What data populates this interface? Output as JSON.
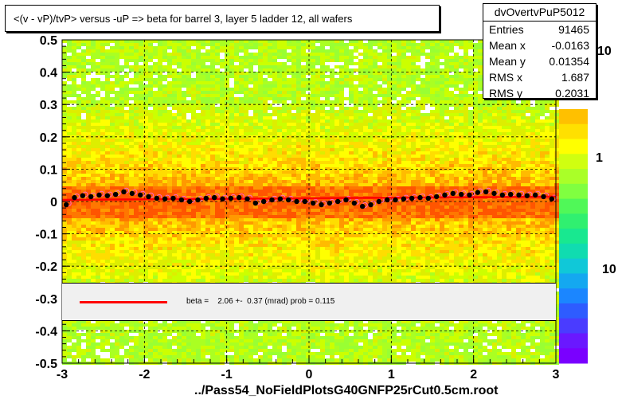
{
  "title": "<(v - vP)/tvP> versus  -uP => beta for barrel 3, layer 5 ladder 12, all wafers",
  "stats": {
    "name": "dvOvertvPuP5012",
    "rows": [
      {
        "label": "Entries",
        "value": "91465"
      },
      {
        "label": "Mean x",
        "value": "-0.0163"
      },
      {
        "label": "Mean y",
        "value": "0.01354"
      },
      {
        "label": "RMS x",
        "value": "1.687"
      },
      {
        "label": "RMS y",
        "value": "0.2031"
      }
    ]
  },
  "legend_text": "beta =    2.06 +-  0.37 (mrad) prob = 0.115",
  "filename": "../Pass54_NoFieldPlotsG40GNFP25rCut0.5cm.root",
  "zaxis_labels": [
    "10",
    "1",
    "10"
  ],
  "colors": {
    "fit_line": "#ff0000",
    "points": "#000000",
    "open_points": "#ff66cc",
    "legend_bg": "#f0f0f0"
  },
  "chart_data": {
    "type": "heatmap",
    "xlim": [
      -3,
      3
    ],
    "ylim": [
      -0.5,
      0.5
    ],
    "x_ticks": [
      "-3",
      "-2",
      "-1",
      "0",
      "1",
      "2",
      "3"
    ],
    "y_ticks": [
      "-0.5",
      "-0.4",
      "-0.3",
      "-0.2",
      "-0.1",
      "0",
      "0.1",
      "0.2",
      "0.3",
      "0.4",
      "0.5"
    ],
    "grid": true,
    "profile": {
      "x": [
        -2.95,
        -2.85,
        -2.75,
        -2.65,
        -2.55,
        -2.45,
        -2.35,
        -2.25,
        -2.15,
        -2.05,
        -1.95,
        -1.85,
        -1.75,
        -1.65,
        -1.55,
        -1.45,
        -1.35,
        -1.25,
        -1.15,
        -1.05,
        -0.95,
        -0.85,
        -0.75,
        -0.65,
        -0.55,
        -0.45,
        -0.35,
        -0.25,
        -0.15,
        -0.05,
        0.05,
        0.15,
        0.25,
        0.35,
        0.45,
        0.55,
        0.65,
        0.75,
        0.85,
        0.95,
        1.05,
        1.15,
        1.25,
        1.35,
        1.45,
        1.55,
        1.65,
        1.75,
        1.85,
        1.95,
        2.05,
        2.15,
        2.25,
        2.35,
        2.45,
        2.55,
        2.65,
        2.75,
        2.85,
        2.95
      ],
      "y": [
        -0.01,
        0.012,
        0.018,
        0.015,
        0.02,
        0.018,
        0.022,
        0.03,
        0.025,
        0.02,
        0.015,
        0.01,
        0.008,
        0.01,
        0.005,
        0.0,
        0.005,
        0.01,
        0.012,
        0.008,
        0.01,
        0.012,
        0.008,
        -0.005,
        0.0,
        0.005,
        0.008,
        0.005,
        0.0,
        0.0,
        -0.005,
        -0.01,
        -0.005,
        0.0,
        0.005,
        -0.005,
        -0.015,
        -0.01,
        0.0,
        0.005,
        0.005,
        0.008,
        0.01,
        0.012,
        0.01,
        0.015,
        0.02,
        0.025,
        0.022,
        0.02,
        0.028,
        0.03,
        0.025,
        0.02,
        0.022,
        0.02,
        0.018,
        0.02,
        0.015,
        0.008
      ]
    },
    "fit": {
      "x": [
        -3,
        3
      ],
      "y": [
        0.005,
        0.015
      ]
    }
  }
}
